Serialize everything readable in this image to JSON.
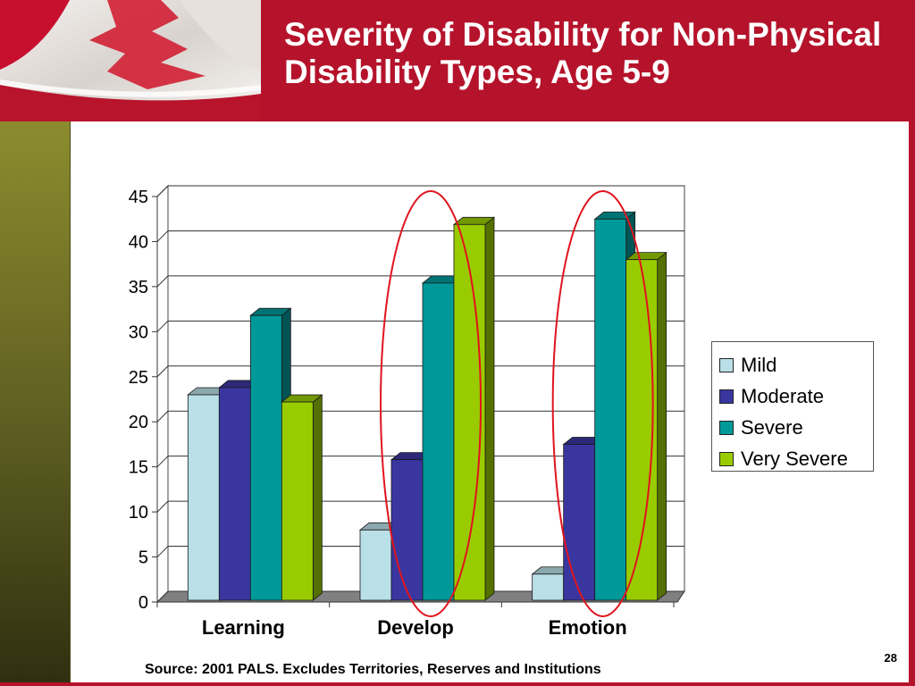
{
  "slide": {
    "title": "Severity of Disability for Non-Physical Disability Types, Age 5-9",
    "source": "Source: 2001 PALS.  Excludes Territories, Reserves and Institutions",
    "page_number": "28"
  },
  "colors": {
    "header": "#b5132b",
    "sidebar": "#6b6b25",
    "highlight_circle": "#e0141e"
  },
  "chart_data": {
    "type": "bar",
    "categories": [
      "Learning",
      "Develop",
      "Emotion"
    ],
    "series": [
      {
        "name": "Mild",
        "color": "#b9e0e6",
        "values": [
          22.6,
          7.6,
          2.7
        ]
      },
      {
        "name": "Moderate",
        "color": "#3a36a0",
        "values": [
          23.4,
          15.4,
          17.1
        ]
      },
      {
        "name": "Severe",
        "color": "#00999a",
        "values": [
          31.4,
          35.0,
          42.1
        ]
      },
      {
        "name": "Very Severe",
        "color": "#99cc00",
        "values": [
          21.8,
          41.5,
          37.6
        ]
      }
    ],
    "yticks": [
      "0",
      "5",
      "10",
      "15",
      "20",
      "25",
      "30",
      "35",
      "40",
      "45"
    ],
    "ylim": [
      0,
      45
    ],
    "grid": true,
    "legend_position": "right",
    "highlighted_categories": [
      "Develop",
      "Emotion"
    ]
  }
}
